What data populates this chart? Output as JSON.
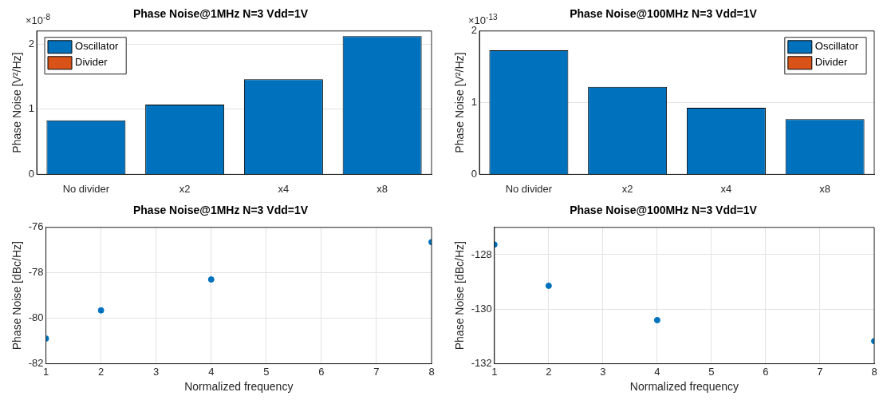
{
  "chart_data": [
    {
      "type": "bar",
      "title": "Phase Noise@1MHz N=3 Vdd=1V",
      "ylabel": "Phase Noise [V²/Hz]",
      "categories": [
        "No divider",
        "x2",
        "x4",
        "x8"
      ],
      "stacked": true,
      "series": [
        {
          "name": "Oscillator",
          "color": "#0072bd",
          "values": [
            0.83,
            1.07,
            1.46,
            2.12
          ]
        },
        {
          "name": "Divider",
          "color": "#d95319",
          "values": [
            0,
            0,
            0,
            0
          ]
        }
      ],
      "ylim": [
        0,
        2.2
      ],
      "yticks": [
        0,
        1,
        2
      ],
      "grid": true,
      "legend": "top left",
      "annotations": [
        "×10$^{-8}$"
      ]
    },
    {
      "type": "bar",
      "title": "Phase Noise@100MHz N=3 Vdd=1V",
      "ylabel": "Phase Noise [V²/Hz]",
      "categories": [
        "No divider",
        "x2",
        "x4",
        "x8"
      ],
      "stacked": true,
      "series": [
        {
          "name": "Oscillator",
          "color": "#0072bd",
          "values": [
            1.73,
            1.22,
            0.93,
            0.77
          ]
        },
        {
          "name": "Divider",
          "color": "#d95319",
          "values": [
            0,
            0,
            0,
            0
          ]
        }
      ],
      "ylim": [
        0,
        2
      ],
      "yticks": [
        0,
        1,
        2
      ],
      "grid": true,
      "legend": "top right",
      "annotations": [
        "×10$^{-13}$"
      ]
    },
    {
      "type": "scatter",
      "title": "Phase Noise@1MHz N=3 Vdd=1V",
      "xlabel": "Normalized frequency",
      "ylabel": "Phase Noise [dBc/Hz]",
      "x": [
        1,
        2,
        4,
        8
      ],
      "series": [
        {
          "color": "#0072bd",
          "values": [
            -80.89,
            -79.65,
            -78.29,
            -76.65
          ]
        }
      ],
      "xlim": [
        1,
        8
      ],
      "xticks": [
        1,
        2,
        3,
        4,
        5,
        6,
        7,
        8
      ],
      "ylim": [
        -82,
        -76
      ],
      "yticks": [
        -82,
        -80,
        -78,
        -76
      ],
      "grid": true,
      "marker": "circle"
    },
    {
      "type": "scatter",
      "title": "Phase Noise@100MHz N=3 Vdd=1V",
      "xlabel": "Normalized frequency",
      "ylabel": "Phase Noise [dBc/Hz]",
      "x": [
        1,
        2,
        4,
        8
      ],
      "series": [
        {
          "color": "#0072bd",
          "values": [
            -127.63,
            -129.14,
            -130.4,
            -131.17
          ]
        }
      ],
      "xlim": [
        1,
        8
      ],
      "xticks": [
        1,
        2,
        3,
        4,
        5,
        6,
        7,
        8
      ],
      "ylim": [
        -132,
        -127
      ],
      "yticks": [
        -132,
        -130,
        -128
      ],
      "grid": true,
      "marker": "circle"
    }
  ]
}
